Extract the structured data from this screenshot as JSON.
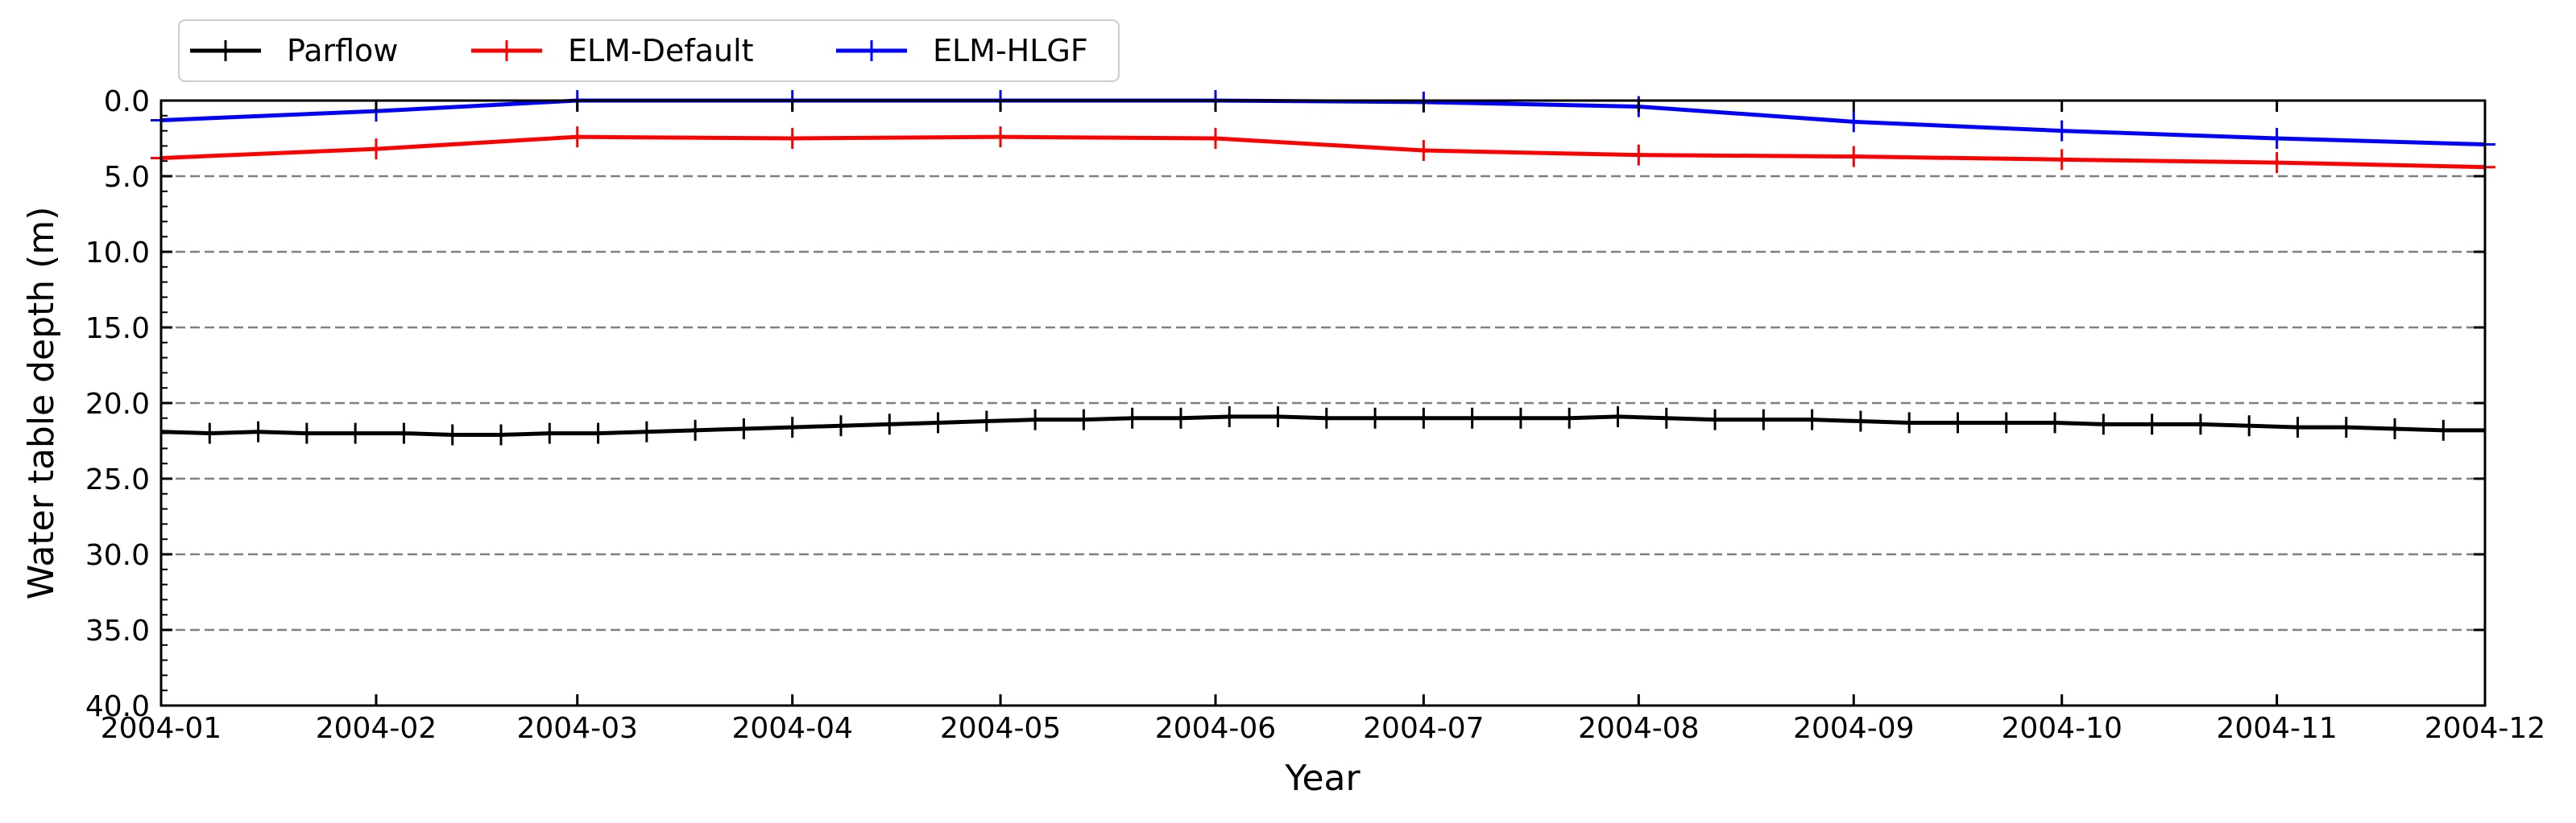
{
  "chart_data": {
    "type": "line",
    "title": "",
    "xlabel": "Year",
    "ylabel": "Water table depth (m)",
    "ylim": [
      40.0,
      0.0
    ],
    "y_inverted": true,
    "y_ticks": [
      "0.0",
      "5.0",
      "10.0",
      "15.0",
      "20.0",
      "25.0",
      "30.0",
      "35.0",
      "40.0"
    ],
    "x_ticks": [
      "2004-01",
      "2004-02",
      "2004-03",
      "2004-04",
      "2004-05",
      "2004-06",
      "2004-07",
      "2004-08",
      "2004-09",
      "2004-10",
      "2004-11",
      "2004-12"
    ],
    "xlim": [
      "2004-01-01",
      "2004-12-01"
    ],
    "grid": "horizontal dashed at major y ticks",
    "legend_position": "top-left, above plot",
    "series": [
      {
        "name": "Parflow",
        "color": "#000000",
        "marker": "vertical-tick",
        "x": [
          "2004-01-01",
          "2004-01-08",
          "2004-01-15",
          "2004-01-22",
          "2004-01-29",
          "2004-02-05",
          "2004-02-12",
          "2004-02-19",
          "2004-02-26",
          "2004-03-04",
          "2004-03-11",
          "2004-03-18",
          "2004-03-25",
          "2004-04-01",
          "2004-04-08",
          "2004-04-15",
          "2004-04-22",
          "2004-04-29",
          "2004-05-06",
          "2004-05-13",
          "2004-05-20",
          "2004-05-27",
          "2004-06-03",
          "2004-06-10",
          "2004-06-17",
          "2004-06-24",
          "2004-07-01",
          "2004-07-08",
          "2004-07-15",
          "2004-07-22",
          "2004-07-29",
          "2004-08-05",
          "2004-08-12",
          "2004-08-19",
          "2004-08-26",
          "2004-09-02",
          "2004-09-09",
          "2004-09-16",
          "2004-09-23",
          "2004-09-30",
          "2004-10-07",
          "2004-10-14",
          "2004-10-21",
          "2004-10-28",
          "2004-11-04",
          "2004-11-11",
          "2004-11-18",
          "2004-11-25",
          "2004-12-01"
        ],
        "values": [
          21.9,
          22.0,
          21.9,
          22.0,
          22.0,
          22.0,
          22.1,
          22.1,
          22.0,
          22.0,
          21.9,
          21.8,
          21.7,
          21.6,
          21.5,
          21.4,
          21.3,
          21.2,
          21.1,
          21.1,
          21.0,
          21.0,
          20.9,
          20.9,
          21.0,
          21.0,
          21.0,
          21.0,
          21.0,
          21.0,
          20.9,
          21.0,
          21.1,
          21.1,
          21.1,
          21.2,
          21.3,
          21.3,
          21.3,
          21.3,
          21.4,
          21.4,
          21.4,
          21.5,
          21.6,
          21.6,
          21.7,
          21.8,
          21.8
        ]
      },
      {
        "name": "ELM-Default",
        "color": "#ff0000",
        "marker": "plus",
        "x": [
          "2004-01-01",
          "2004-02-01",
          "2004-03-01",
          "2004-04-01",
          "2004-05-01",
          "2004-06-01",
          "2004-07-01",
          "2004-08-01",
          "2004-09-01",
          "2004-10-01",
          "2004-11-01",
          "2004-12-01"
        ],
        "values": [
          3.8,
          3.2,
          2.4,
          2.5,
          2.4,
          2.5,
          3.3,
          3.6,
          3.7,
          3.9,
          4.1,
          4.4
        ]
      },
      {
        "name": "ELM-HLGF",
        "color": "#0000ff",
        "marker": "plus",
        "x": [
          "2004-01-01",
          "2004-02-01",
          "2004-03-01",
          "2004-04-01",
          "2004-05-01",
          "2004-06-01",
          "2004-07-01",
          "2004-08-01",
          "2004-09-01",
          "2004-10-01",
          "2004-11-01",
          "2004-12-01"
        ],
        "values": [
          1.3,
          0.7,
          0.0,
          0.0,
          0.0,
          0.0,
          0.1,
          0.4,
          1.4,
          2.0,
          2.5,
          2.9
        ]
      }
    ]
  }
}
